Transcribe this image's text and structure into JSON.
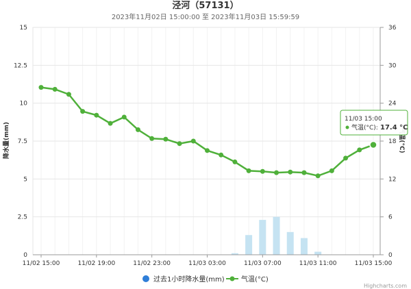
{
  "chart_data": {
    "type": "line",
    "title": "泾河（57131）",
    "subtitle": "2023年11月02日 15:00:00 至 2023年11月03日 15:59:59",
    "x": [
      "11/02 15:00",
      "11/02 16:00",
      "11/02 17:00",
      "11/02 18:00",
      "11/02 19:00",
      "11/02 20:00",
      "11/02 21:00",
      "11/02 22:00",
      "11/02 23:00",
      "11/03 00:00",
      "11/03 01:00",
      "11/03 02:00",
      "11/03 03:00",
      "11/03 04:00",
      "11/03 05:00",
      "11/03 06:00",
      "11/03 07:00",
      "11/03 08:00",
      "11/03 09:00",
      "11/03 10:00",
      "11/03 11:00",
      "11/03 12:00",
      "11/03 13:00",
      "11/03 14:00",
      "11/03 15:00"
    ],
    "x_tick_labels": [
      "11/02 15:00",
      "11/02 19:00",
      "11/02 23:00",
      "11/03 03:00",
      "11/03 07:00",
      "11/03 11:00",
      "11/03 15:00"
    ],
    "y_left": {
      "label": "降水量(mm)",
      "ylim": [
        0,
        15
      ],
      "ticks": [
        "0",
        "2.5",
        "5",
        "7.5",
        "10",
        "12.5",
        "15"
      ]
    },
    "y_right": {
      "label": "气温(°C)",
      "ylim": [
        0,
        36
      ],
      "ticks": [
        "0",
        "6",
        "12",
        "18",
        "24",
        "30",
        "36"
      ]
    },
    "series": [
      {
        "name": "过去1小时降水量(mm)",
        "type": "bar",
        "axis": "left",
        "color": "#2f7ed8",
        "values": [
          0,
          0,
          0,
          0,
          0,
          0,
          0,
          0,
          0,
          0,
          0,
          0,
          0,
          0,
          0.1,
          1.3,
          2.3,
          2.5,
          1.5,
          1.1,
          0.2,
          0,
          0,
          0,
          0
        ]
      },
      {
        "name": "气温(°C)",
        "type": "line",
        "axis": "right",
        "color": "#4fb03a",
        "values": [
          26.5,
          26.2,
          25.4,
          22.7,
          22.1,
          20.8,
          21.8,
          19.8,
          18.4,
          18.3,
          17.6,
          18.0,
          16.5,
          15.8,
          14.7,
          13.3,
          13.2,
          13.0,
          13.1,
          13.0,
          12.5,
          13.3,
          15.3,
          16.6,
          17.4
        ]
      }
    ],
    "grid": true,
    "legend": "bottom-center",
    "tooltip": {
      "header": "11/03 15:00",
      "series_label": "气温(°C):",
      "value": "17.4 °C"
    },
    "credit": "Highcharts.com"
  }
}
